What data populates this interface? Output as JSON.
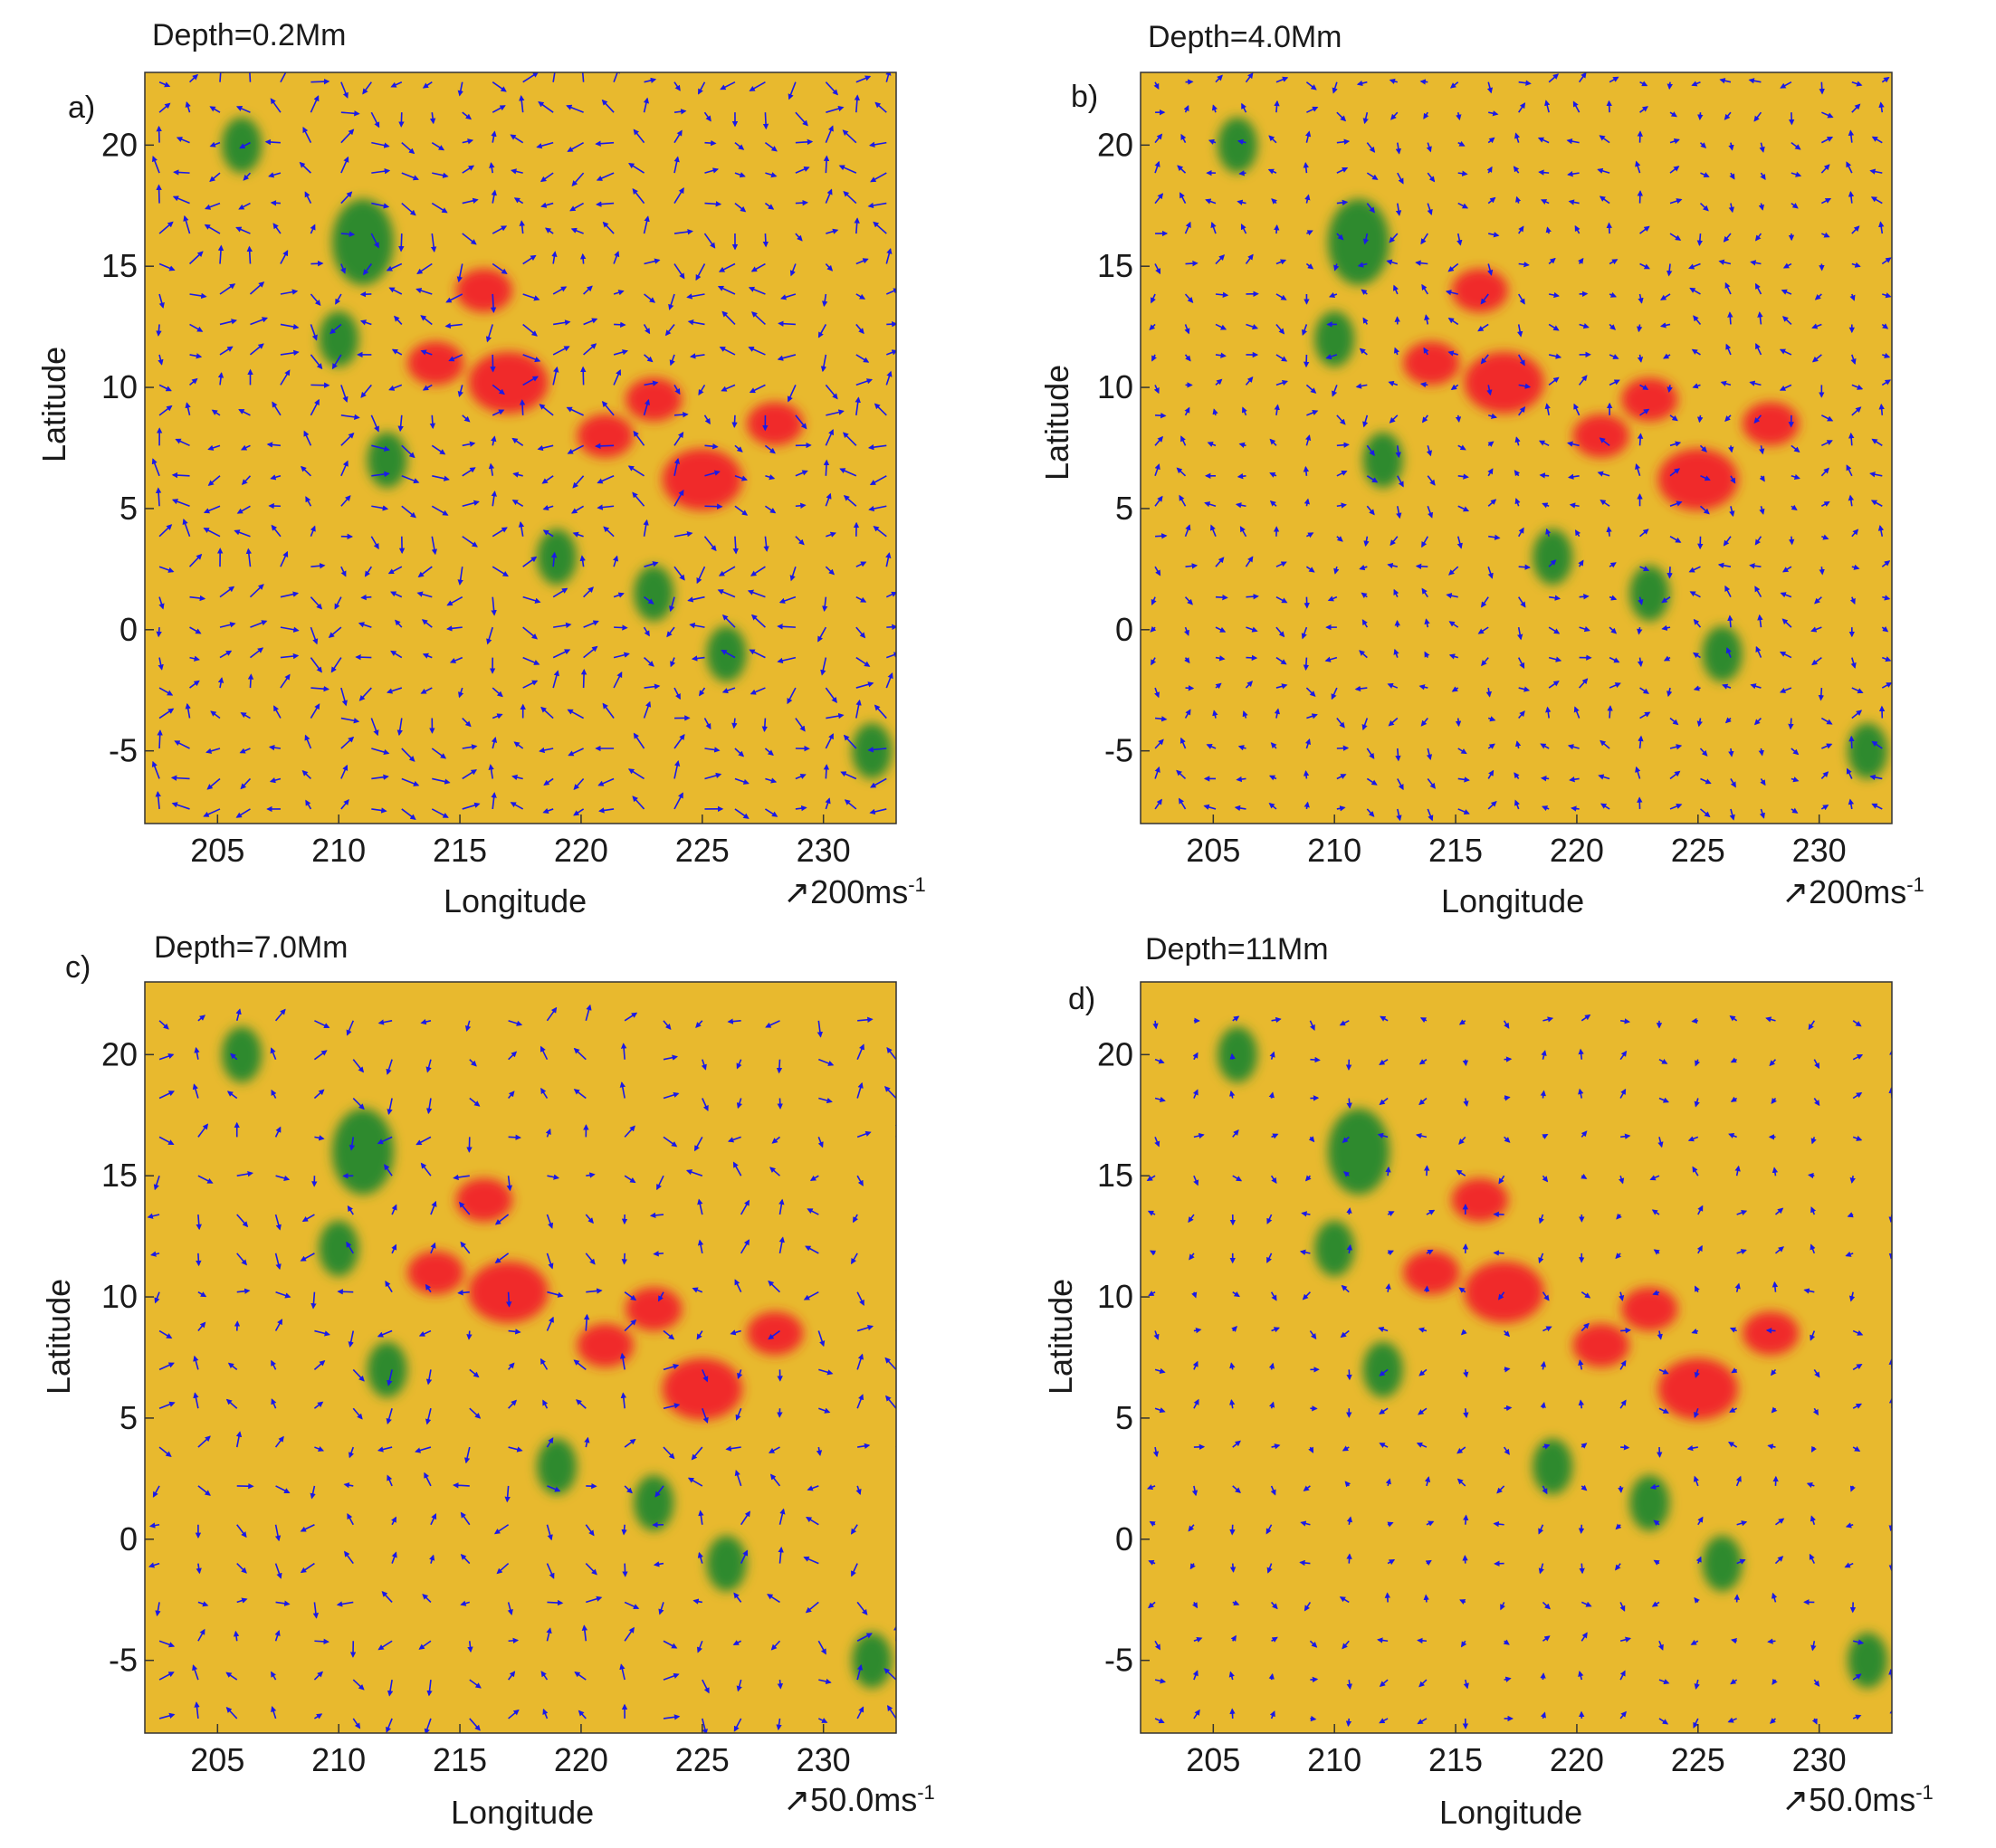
{
  "chart_data": [
    {
      "type": "heatmap",
      "panel_label": "a)",
      "title": "Depth=0.2Mm",
      "xlabel": "Longitude",
      "ylabel": "Latitude",
      "xlim": [
        202,
        233
      ],
      "ylim": [
        -8,
        23
      ],
      "xticks": [
        "205",
        "210",
        "215",
        "220",
        "225",
        "230"
      ],
      "yticks": [
        "20",
        "15",
        "10",
        "5",
        "0",
        "-5"
      ],
      "xtick_values": [
        205,
        210,
        215,
        220,
        225,
        230
      ],
      "ytick_values": [
        20,
        15,
        10,
        5,
        0,
        -5
      ],
      "scale_arrow_label": "200ms",
      "scale_arrow_exp": "-1",
      "arrow_density": "high",
      "arrow_scale": 0.9
    },
    {
      "type": "heatmap",
      "panel_label": "b)",
      "title": "Depth=4.0Mm",
      "xlabel": "Longitude",
      "ylabel": "Latitude",
      "xlim": [
        202,
        233
      ],
      "ylim": [
        -8,
        23
      ],
      "xticks": [
        "205",
        "210",
        "215",
        "220",
        "225",
        "230"
      ],
      "yticks": [
        "20",
        "15",
        "10",
        "5",
        "0",
        "-5"
      ],
      "xtick_values": [
        205,
        210,
        215,
        220,
        225,
        230
      ],
      "ytick_values": [
        20,
        15,
        10,
        5,
        0,
        -5
      ],
      "scale_arrow_label": "200ms",
      "scale_arrow_exp": "-1",
      "arrow_density": "high",
      "arrow_scale": 0.6
    },
    {
      "type": "heatmap",
      "panel_label": "c)",
      "title": "Depth=7.0Mm",
      "xlabel": "Longitude",
      "ylabel": "Latitude",
      "xlim": [
        202,
        233
      ],
      "ylim": [
        -8,
        23
      ],
      "xticks": [
        "205",
        "210",
        "215",
        "220",
        "225",
        "230"
      ],
      "yticks": [
        "20",
        "15",
        "10",
        "5",
        "0",
        "-5"
      ],
      "xtick_values": [
        205,
        210,
        215,
        220,
        225,
        230
      ],
      "ytick_values": [
        20,
        15,
        10,
        5,
        0,
        -5
      ],
      "scale_arrow_label": "50.0ms",
      "scale_arrow_exp": "-1",
      "arrow_density": "medium",
      "arrow_scale": 0.8
    },
    {
      "type": "heatmap",
      "panel_label": "d)",
      "title": "Depth=11Mm",
      "xlabel": "Longitude",
      "ylabel": "Latitude",
      "xlim": [
        202,
        233
      ],
      "ylim": [
        -8,
        23
      ],
      "xticks": [
        "205",
        "210",
        "215",
        "220",
        "225",
        "230"
      ],
      "yticks": [
        "20",
        "15",
        "10",
        "5",
        "0",
        "-5"
      ],
      "xtick_values": [
        205,
        210,
        215,
        220,
        225,
        230
      ],
      "ytick_values": [
        20,
        15,
        10,
        5,
        0,
        -5
      ],
      "scale_arrow_label": "50.0ms",
      "scale_arrow_exp": "-1",
      "arrow_density": "medium",
      "arrow_scale": 0.5
    }
  ],
  "features": {
    "red_regions_lonlat": [
      [
        217,
        10.2
      ],
      [
        225,
        6.2
      ],
      [
        216,
        14
      ],
      [
        221,
        8
      ],
      [
        228,
        8.5
      ],
      [
        214,
        11
      ],
      [
        223,
        9.5
      ]
    ],
    "green_regions_lonlat": [
      [
        211,
        16
      ],
      [
        210,
        12
      ],
      [
        212,
        7
      ],
      [
        223,
        1.5
      ],
      [
        232,
        -5
      ],
      [
        206,
        20
      ],
      [
        219,
        3
      ],
      [
        226,
        -1
      ]
    ],
    "colors": {
      "background": "#e8b92e",
      "positive": "#f02a2a",
      "negative": "#2f8a2f",
      "arrow": "#1a1ae6"
    }
  }
}
